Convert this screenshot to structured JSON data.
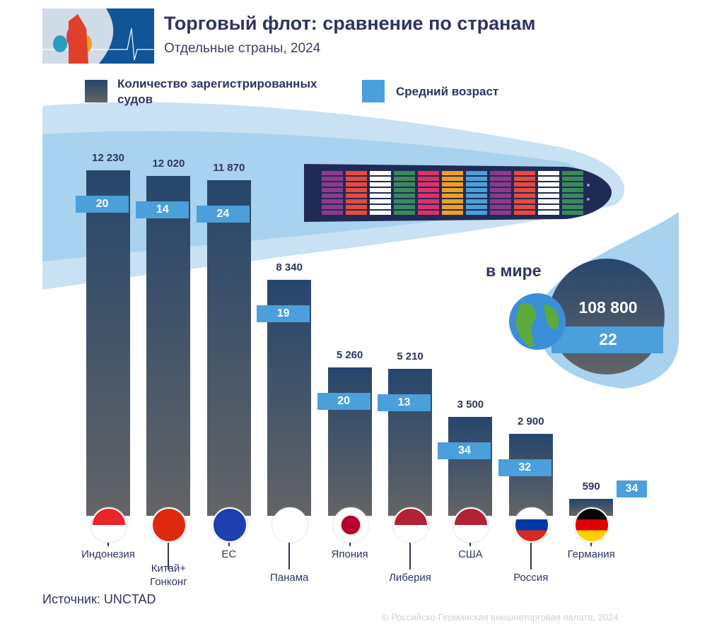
{
  "header": {
    "title": "Торговый флот: сравнение по странам",
    "subtitle": "Отдельные страны, 2024"
  },
  "legend": {
    "count": "Количество зарегистрированных судов",
    "age": "Средний возраст"
  },
  "world": {
    "label": "в мире",
    "count": "108 800",
    "age": "22"
  },
  "source": "Источник: UNCTAD",
  "copyright": "© Российско-Германская внешнеторговая палата, 2024",
  "colors": {
    "bar_top": "#26466c",
    "bar_bottom": "#636466",
    "age": "#4b9fdb",
    "text": "#2d3560",
    "wave": "#c5e1f3"
  },
  "chart_data": {
    "type": "bar",
    "title": "Торговый флот: сравнение по странам",
    "categories": [
      "Индонезия",
      "Китай+ Гонконг",
      "ЕС",
      "Панама",
      "Япония",
      "Либерия",
      "США",
      "Россия",
      "Германия"
    ],
    "series": [
      {
        "name": "Количество зарегистрированных судов",
        "values": [
          12230,
          12020,
          11870,
          8340,
          5260,
          5210,
          3500,
          2900,
          590
        ],
        "labels": [
          "12 230",
          "12 020",
          "11 870",
          "8 340",
          "5 260",
          "5 210",
          "3 500",
          "2 900",
          "590"
        ]
      },
      {
        "name": "Средний возраст",
        "values": [
          20,
          14,
          24,
          19,
          20,
          13,
          34,
          32,
          34
        ]
      }
    ]
  }
}
